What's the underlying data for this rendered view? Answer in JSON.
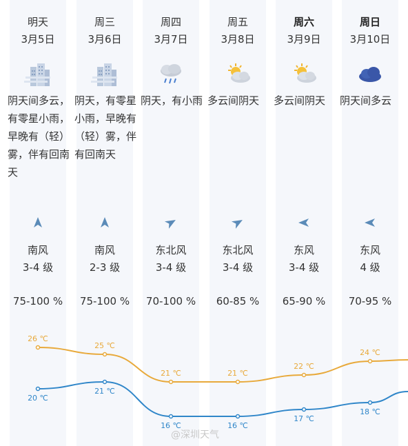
{
  "forecast": {
    "days": [
      {
        "day": "明天",
        "date": "3月5日",
        "icon": "cloudy-fog-buildings-icon",
        "desc": "阴天间多云，有零星小雨，早晚有（轻）雾，伴有回南天",
        "wind_dir": "南风",
        "wind_level": "3-4 级",
        "humidity": "75-100 %",
        "arrow": "north-arrow-icon",
        "bold": false
      },
      {
        "day": "周三",
        "date": "3月6日",
        "icon": "cloudy-fog-buildings-icon",
        "desc": "阴天，有零星小雨，早晚有（轻）雾，伴有回南天",
        "wind_dir": "南风",
        "wind_level": "2-3 级",
        "humidity": "75-100 %",
        "arrow": "north-arrow-icon",
        "bold": false
      },
      {
        "day": "周四",
        "date": "3月7日",
        "icon": "light-rain-icon",
        "desc": "阴天，有小雨",
        "wind_dir": "东北风",
        "wind_level": "3-4 级",
        "humidity": "70-100 %",
        "arrow": "northeast-arrow-icon",
        "bold": false
      },
      {
        "day": "周五",
        "date": "3月8日",
        "icon": "partly-cloudy-icon",
        "desc": "多云间阴天",
        "wind_dir": "东北风",
        "wind_level": "3-4 级",
        "humidity": "60-85 %",
        "arrow": "northeast-arrow-icon",
        "bold": false
      },
      {
        "day": "周六",
        "date": "3月9日",
        "icon": "partly-cloudy-icon",
        "desc": "多云间阴天",
        "wind_dir": "东风",
        "wind_level": "3-4 级",
        "humidity": "65-90 %",
        "arrow": "east-arrow-icon",
        "bold": true
      },
      {
        "day": "周日",
        "date": "3月10日",
        "icon": "overcast-icon",
        "desc": "阴天间多云",
        "wind_dir": "东风",
        "wind_level": "4 级",
        "humidity": "70-95 %",
        "arrow": "east-arrow-icon",
        "bold": true
      }
    ]
  },
  "chart_data": {
    "type": "line",
    "categories": [
      "明天",
      "周三",
      "周四",
      "周五",
      "周六",
      "周日"
    ],
    "series": [
      {
        "values": [
          26,
          25,
          21,
          21,
          22,
          24
        ],
        "labels": [
          "26 ℃",
          "25 ℃",
          "21 ℃",
          "21 ℃",
          "22 ℃",
          "24 ℃"
        ],
        "color": "#e8a93a"
      },
      {
        "values": [
          20,
          21,
          16,
          16,
          17,
          18
        ],
        "labels": [
          "20 ℃",
          "21 ℃",
          "16 ℃",
          "16 ℃",
          "17 ℃",
          "18 ℃"
        ],
        "color": "#2f86c9"
      }
    ]
  },
  "watermark": "@深圳天气",
  "colors": {
    "column_bg": "#f5f7fb",
    "high_line": "#e8a93a",
    "low_line": "#2f86c9",
    "icon_blue": "#3a57a8"
  }
}
